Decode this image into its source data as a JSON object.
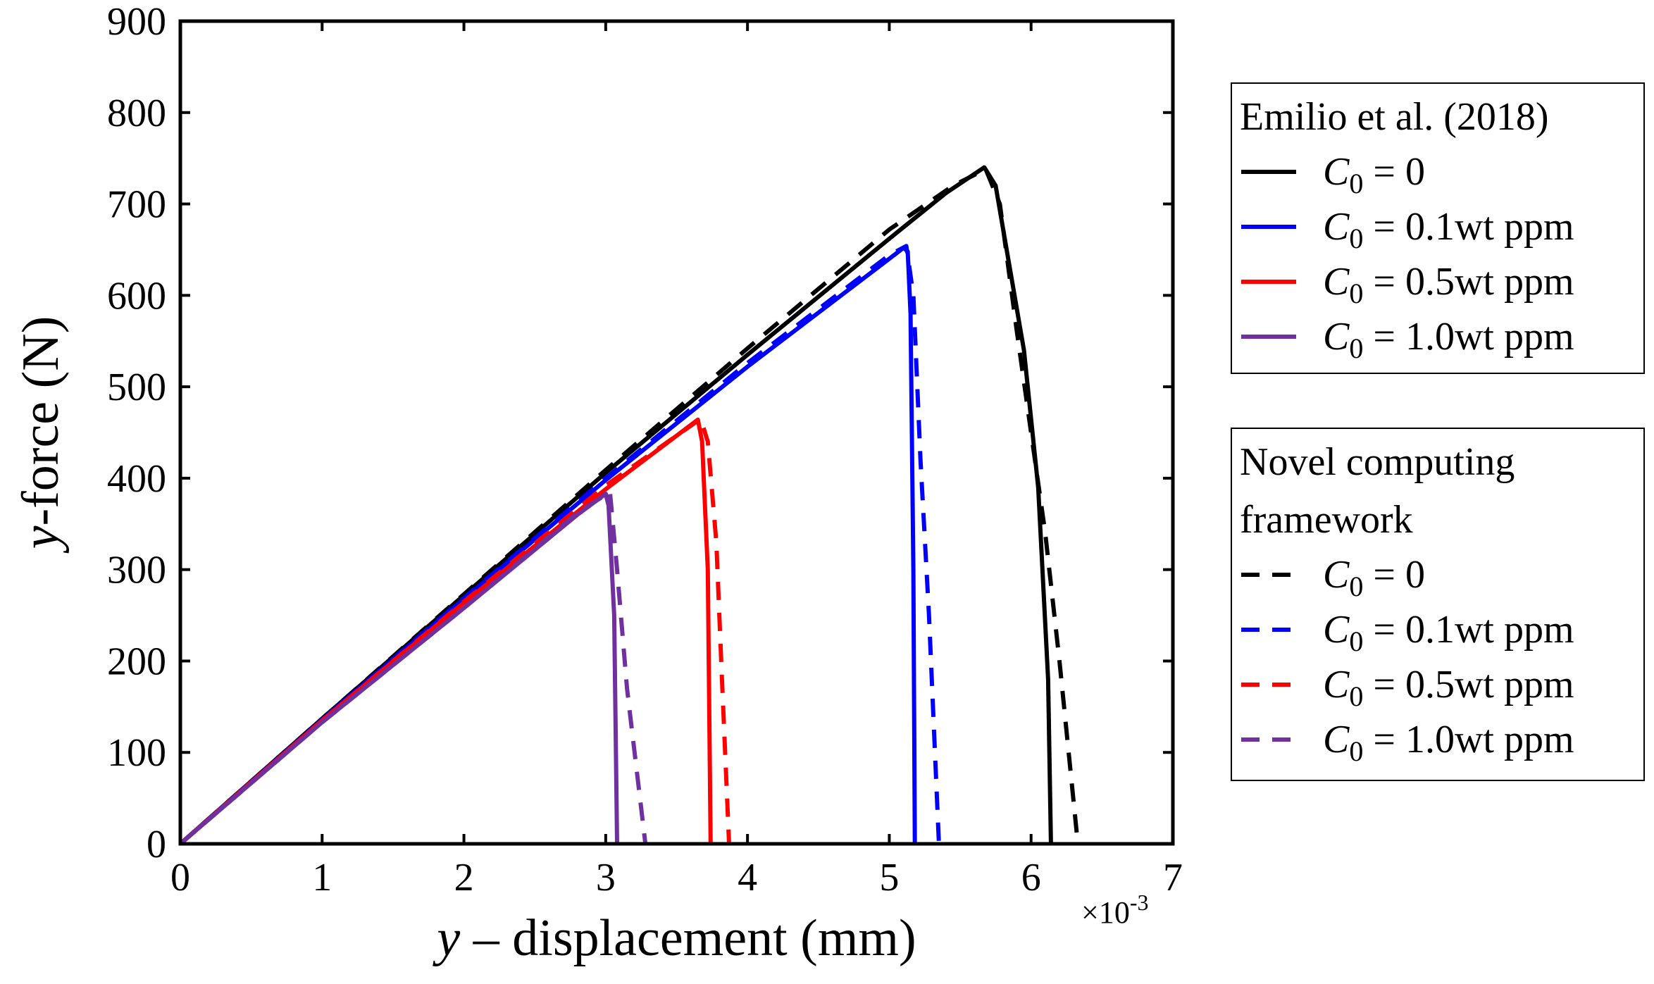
{
  "chart_data": {
    "type": "line",
    "xlabel_italic": "y",
    "xlabel_rest": " – displacement (mm)",
    "ylabel_italic": "y",
    "ylabel_rest": "-force (N)",
    "x_multiplier": {
      "base": "×10",
      "exp": "-3"
    },
    "xlim": [
      0,
      7
    ],
    "ylim": [
      0,
      900
    ],
    "xticks": [
      0,
      1,
      2,
      3,
      4,
      5,
      6,
      7
    ],
    "yticks": [
      0,
      100,
      200,
      300,
      400,
      500,
      600,
      700,
      800,
      900
    ],
    "grid": false,
    "legend_groups": [
      {
        "title_lines": [
          "Emilio et al. (2018)"
        ],
        "style": "solid",
        "entries": [
          {
            "var": "C",
            "sub": "0",
            "text": " = 0",
            "color": "#000000"
          },
          {
            "var": "C",
            "sub": "0",
            "text": " = 0.1wt ppm",
            "color": "#0000ff"
          },
          {
            "var": "C",
            "sub": "0",
            "text": " = 0.5wt ppm",
            "color": "#ff0000"
          },
          {
            "var": "C",
            "sub": "0",
            "text": " = 1.0wt ppm",
            "color": "#7030a0"
          }
        ]
      },
      {
        "title_lines": [
          "Novel computing",
          "framework"
        ],
        "style": "dashed",
        "entries": [
          {
            "var": "C",
            "sub": "0",
            "text": " = 0",
            "color": "#000000"
          },
          {
            "var": "C",
            "sub": "0",
            "text": " = 0.1wt ppm",
            "color": "#0000ff"
          },
          {
            "var": "C",
            "sub": "0",
            "text": " = 0.5wt ppm",
            "color": "#ff0000"
          },
          {
            "var": "C",
            "sub": "0",
            "text": " = 1.0wt ppm",
            "color": "#7030a0"
          }
        ]
      }
    ],
    "series": [
      {
        "name": "Emilio et al. (2018) C0 = 0",
        "color": "#000000",
        "style": "solid",
        "points": [
          [
            0,
            0
          ],
          [
            1,
            137
          ],
          [
            2,
            272
          ],
          [
            3,
            406
          ],
          [
            4,
            535
          ],
          [
            5,
            662
          ],
          [
            5.4,
            712
          ],
          [
            5.67,
            740
          ],
          [
            5.75,
            720
          ],
          [
            5.95,
            540
          ],
          [
            6.05,
            390
          ],
          [
            6.12,
            180
          ],
          [
            6.14,
            0
          ]
        ]
      },
      {
        "name": "Emilio et al. (2018) C0 = 0.1wt ppm",
        "color": "#0000ff",
        "style": "solid",
        "points": [
          [
            0,
            0
          ],
          [
            1,
            136
          ],
          [
            2,
            268
          ],
          [
            3,
            398
          ],
          [
            4,
            522
          ],
          [
            5,
            640
          ],
          [
            5.1,
            652
          ],
          [
            5.13,
            648
          ],
          [
            5.15,
            580
          ],
          [
            5.17,
            300
          ],
          [
            5.18,
            0
          ]
        ]
      },
      {
        "name": "Emilio et al. (2018) C0 = 0.5wt ppm",
        "color": "#ff0000",
        "style": "solid",
        "points": [
          [
            0,
            0
          ],
          [
            1,
            135
          ],
          [
            2,
            264
          ],
          [
            3,
            388
          ],
          [
            3.65,
            464
          ],
          [
            3.68,
            440
          ],
          [
            3.72,
            300
          ],
          [
            3.74,
            0
          ]
        ]
      },
      {
        "name": "Emilio et al. (2018) C0 = 1.0wt ppm",
        "color": "#7030a0",
        "style": "solid",
        "points": [
          [
            0,
            0
          ],
          [
            1,
            133
          ],
          [
            2,
            258
          ],
          [
            2.8,
            360
          ],
          [
            3,
            383
          ],
          [
            3.02,
            370
          ],
          [
            3.06,
            250
          ],
          [
            3.08,
            0
          ]
        ]
      },
      {
        "name": "Novel computing framework C0 = 0",
        "color": "#000000",
        "style": "dashed",
        "points": [
          [
            0,
            0
          ],
          [
            1,
            137
          ],
          [
            2,
            273
          ],
          [
            3,
            409
          ],
          [
            4,
            542
          ],
          [
            5,
            672
          ],
          [
            5.45,
            720
          ],
          [
            5.68,
            738
          ],
          [
            5.78,
            700
          ],
          [
            5.9,
            560
          ],
          [
            6.1,
            340
          ],
          [
            6.2,
            200
          ],
          [
            6.33,
            0
          ]
        ]
      },
      {
        "name": "Novel computing framework C0 = 0.1wt ppm",
        "color": "#0000ff",
        "style": "dashed",
        "points": [
          [
            0,
            0
          ],
          [
            1,
            136
          ],
          [
            2,
            269
          ],
          [
            3,
            400
          ],
          [
            4,
            526
          ],
          [
            5,
            644
          ],
          [
            5.12,
            654
          ],
          [
            5.17,
            600
          ],
          [
            5.22,
            420
          ],
          [
            5.28,
            250
          ],
          [
            5.35,
            0
          ]
        ]
      },
      {
        "name": "Novel computing framework C0 = 0.5wt ppm",
        "color": "#ff0000",
        "style": "dashed",
        "points": [
          [
            0,
            0
          ],
          [
            1,
            135
          ],
          [
            2,
            265
          ],
          [
            3,
            392
          ],
          [
            3.67,
            465
          ],
          [
            3.72,
            440
          ],
          [
            3.78,
            330
          ],
          [
            3.82,
            180
          ],
          [
            3.87,
            0
          ]
        ]
      },
      {
        "name": "Novel computing framework C0 = 1.0wt ppm",
        "color": "#7030a0",
        "style": "dashed",
        "points": [
          [
            0,
            0
          ],
          [
            1,
            133
          ],
          [
            2,
            258
          ],
          [
            2.8,
            362
          ],
          [
            3.03,
            385
          ],
          [
            3.08,
            300
          ],
          [
            3.15,
            170
          ],
          [
            3.28,
            0
          ]
        ]
      }
    ]
  }
}
